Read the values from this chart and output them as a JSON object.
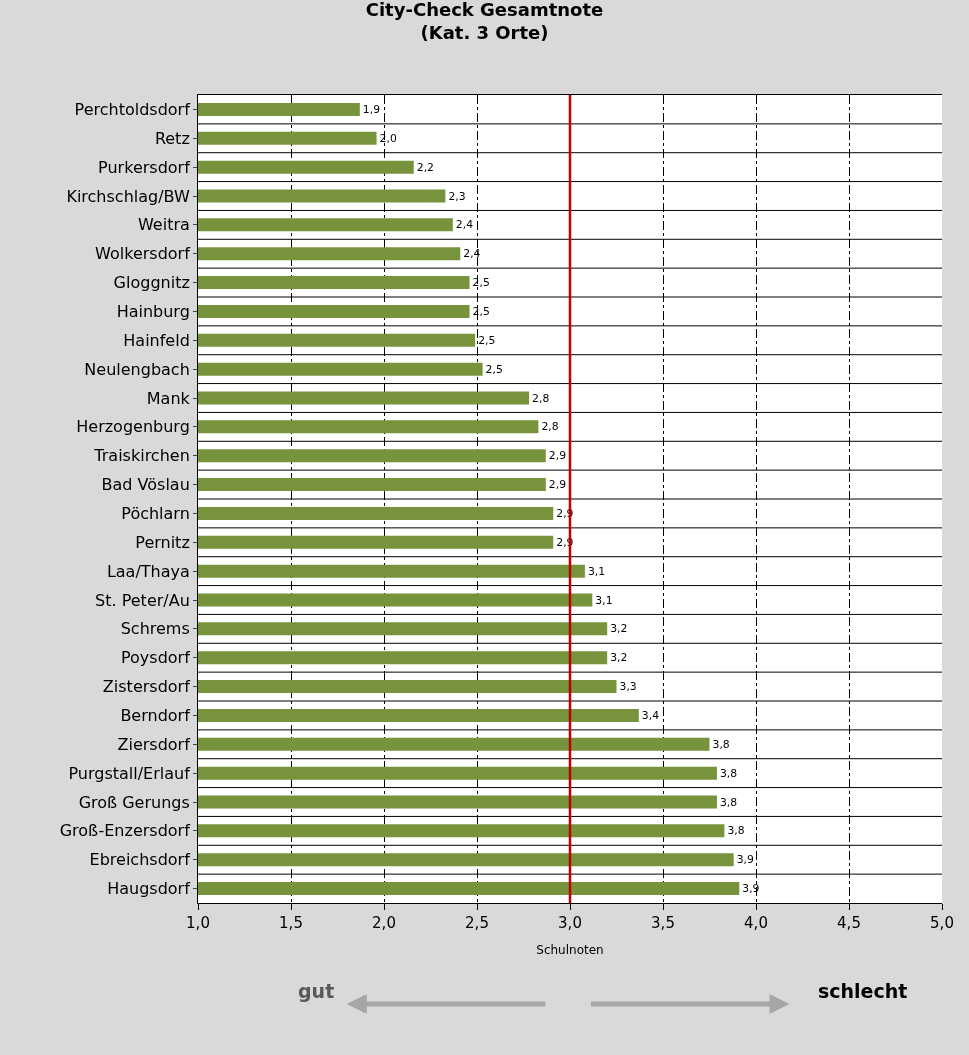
{
  "chart_data": {
    "type": "bar",
    "orientation": "horizontal",
    "title": "City-Check Gesamtnote\n(Kat. 3 Orte)",
    "xlabel": "Schulnoten",
    "categories": [
      "Perchtoldsdorf",
      "Retz",
      "Purkersdorf",
      "Kirchschlag/BW",
      "Weitra",
      "Wolkersdorf",
      "Gloggnitz",
      "Hainburg",
      "Hainfeld",
      "Neulengbach",
      "Mank",
      "Herzogenburg",
      "Traiskirchen",
      "Bad Vöslau",
      "Pöchlarn",
      "Pernitz",
      "Laa/Thaya",
      "St. Peter/Au",
      "Schrems",
      "Poysdorf",
      "Zistersdorf",
      "Berndorf",
      "Ziersdorf",
      "Purgstall/Erlauf",
      "Groß Gerungs",
      "Groß-Enzersdorf",
      "Ebreichsdorf",
      "Haugsdorf"
    ],
    "values": [
      1.87,
      1.96,
      2.16,
      2.33,
      2.37,
      2.41,
      2.46,
      2.46,
      2.49,
      2.53,
      2.78,
      2.83,
      2.87,
      2.87,
      2.91,
      2.91,
      3.08,
      3.12,
      3.2,
      3.2,
      3.25,
      3.37,
      3.75,
      3.79,
      3.79,
      3.83,
      3.88,
      3.91
    ],
    "value_labels": [
      "1,9",
      "2,0",
      "2,2",
      "2,3",
      "2,4",
      "2,4",
      "2,5",
      "2,5",
      "2,5",
      "2,5",
      "2,8",
      "2,8",
      "2,9",
      "2,9",
      "2,9",
      "2,9",
      "3,1",
      "3,1",
      "3,2",
      "3,2",
      "3,3",
      "3,4",
      "3,8",
      "3,8",
      "3,8",
      "3,8",
      "3,9",
      "3,9"
    ],
    "color": "#77933c",
    "xlim": [
      1,
      5
    ],
    "xticks": [
      {
        "value": 1,
        "label": "1,0"
      },
      {
        "value": 1.5,
        "label": "1,5"
      },
      {
        "value": 2,
        "label": "2,0"
      },
      {
        "value": 2.5,
        "label": "2,5"
      },
      {
        "value": 3,
        "label": "3,0"
      },
      {
        "value": 3.5,
        "label": "3,5"
      },
      {
        "value": 4,
        "label": "4,0"
      },
      {
        "value": 4.5,
        "label": "4,5"
      },
      {
        "value": 5,
        "label": "5,0"
      }
    ],
    "ref_lines": [
      {
        "axis": "x",
        "value": 3,
        "color": "#c00000"
      }
    ],
    "grid": true,
    "legend": false,
    "annotations": [
      "gut",
      "schlecht"
    ]
  }
}
